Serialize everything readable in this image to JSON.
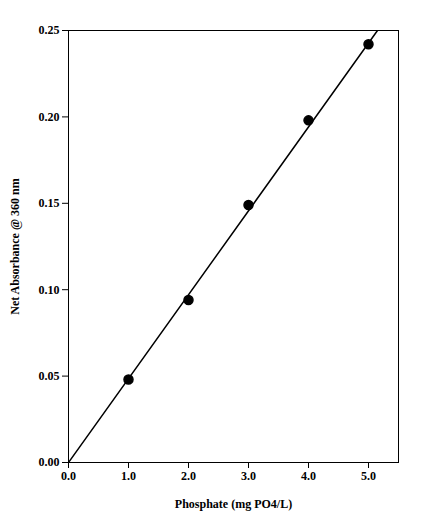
{
  "chart_data": {
    "type": "scatter",
    "x_label": "Phosphate (mg PO4/L)",
    "y_label": "Net Absorbance @ 360 nm",
    "series": [
      {
        "type": "scatter",
        "color": "#000000",
        "marker": "circle",
        "x": [
          1,
          2,
          3,
          4,
          5
        ],
        "values": [
          0.048,
          0.094,
          0.149,
          0.198,
          0.242
        ]
      },
      {
        "type": "line",
        "color": "#000000",
        "line_style": "solid",
        "x": [
          0,
          5.15
        ],
        "values": [
          0,
          0.25
        ]
      }
    ],
    "xlim": [
      0,
      5.5
    ],
    "ylim": [
      0,
      0.25
    ],
    "xticks": [
      {
        "value": 0,
        "label": "0.0"
      },
      {
        "value": 1,
        "label": "1.0"
      },
      {
        "value": 2,
        "label": "2.0"
      },
      {
        "value": 3,
        "label": "3.0"
      },
      {
        "value": 4,
        "label": "4.0"
      },
      {
        "value": 5,
        "label": "5.0"
      }
    ],
    "yticks": [
      {
        "value": 0,
        "label": "0.00"
      },
      0.05,
      {
        "value": 0.1,
        "label": "0.10"
      },
      0.15,
      {
        "value": 0.2,
        "label": "0.20"
      },
      0.25
    ],
    "grid": false
  }
}
